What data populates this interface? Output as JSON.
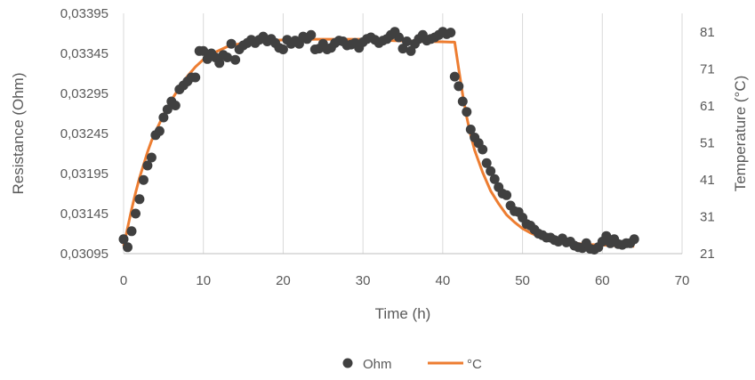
{
  "chart_data": {
    "type": "scatter",
    "xlabel": "Time (h)",
    "ylabel": "Resistance (Ohm)",
    "y2label": "Temperature (°C)",
    "xlim": [
      0,
      70
    ],
    "ylim": [
      0.03095,
      0.03395
    ],
    "y2lim": [
      21,
      86
    ],
    "x_ticks": [
      "0",
      "10",
      "20",
      "30",
      "40",
      "50",
      "60",
      "70"
    ],
    "y_ticks": [
      "0,03095",
      "0,03145",
      "0,03195",
      "0,03245",
      "0,03295",
      "0,03345",
      "0,03395"
    ],
    "y2_ticks": [
      "21",
      "31",
      "41",
      "51",
      "61",
      "71",
      "81"
    ],
    "grid": "vertical",
    "legend_position": "bottom",
    "colors": {
      "ohm": "#404040",
      "temp": "#ed7d31",
      "grid": "#d9d9d9"
    },
    "series": [
      {
        "name": "Ohm",
        "kind": "scatter",
        "axis": "left",
        "x": [
          0,
          0.5,
          1,
          1.5,
          2,
          2.5,
          3,
          3.5,
          4,
          4.5,
          5,
          5.5,
          6,
          6.5,
          7,
          7.5,
          8,
          8.5,
          9,
          9.5,
          10,
          10.5,
          11,
          11.5,
          12,
          12.5,
          13,
          13.5,
          14,
          14.5,
          15,
          15.5,
          16,
          16.5,
          17,
          17.5,
          18,
          18.5,
          19,
          19.5,
          20,
          20.5,
          21,
          21.5,
          22,
          22.5,
          23,
          23.5,
          24,
          24.5,
          25,
          25.5,
          26,
          26.5,
          27,
          27.5,
          28,
          28.5,
          29,
          29.5,
          30,
          30.5,
          31,
          31.5,
          32,
          32.5,
          33,
          33.5,
          34,
          34.5,
          35,
          35.5,
          36,
          36.5,
          37,
          37.5,
          38,
          38.5,
          39,
          39.5,
          40,
          40.5,
          41,
          41.5,
          42,
          42.5,
          43,
          43.5,
          44,
          44.5,
          45,
          45.5,
          46,
          46.5,
          47,
          47.5,
          48,
          48.5,
          49,
          49.5,
          50,
          50.5,
          51,
          51.5,
          52,
          52.5,
          53,
          53.5,
          54,
          54.5,
          55,
          55.5,
          56,
          56.5,
          57,
          57.5,
          58,
          58.5,
          59,
          59.5,
          60,
          60.5,
          61,
          61.5,
          62,
          62.5,
          63,
          63.5,
          64
        ],
        "values": [
          0.03113,
          0.03103,
          0.03123,
          0.03145,
          0.03163,
          0.03187,
          0.03205,
          0.03215,
          0.03243,
          0.03248,
          0.03265,
          0.03275,
          0.03285,
          0.0328,
          0.033,
          0.03305,
          0.0331,
          0.03315,
          0.03315,
          0.03348,
          0.03348,
          0.03338,
          0.03345,
          0.0334,
          0.03333,
          0.03343,
          0.0334,
          0.03357,
          0.03337,
          0.0335,
          0.03355,
          0.03358,
          0.03362,
          0.03358,
          0.03362,
          0.03366,
          0.0336,
          0.03363,
          0.03358,
          0.03352,
          0.0335,
          0.03362,
          0.03357,
          0.03361,
          0.03357,
          0.03366,
          0.03363,
          0.03368,
          0.0335,
          0.03351,
          0.03357,
          0.0335,
          0.03352,
          0.03358,
          0.03361,
          0.0336,
          0.03355,
          0.03356,
          0.03358,
          0.03352,
          0.03359,
          0.03363,
          0.03365,
          0.03362,
          0.03358,
          0.03361,
          0.03363,
          0.03368,
          0.03372,
          0.03365,
          0.03351,
          0.0336,
          0.03348,
          0.03357,
          0.03363,
          0.03368,
          0.03361,
          0.03363,
          0.03365,
          0.03368,
          0.03372,
          0.03369,
          0.03371,
          0.03316,
          0.03304,
          0.03285,
          0.03272,
          0.0325,
          0.0324,
          0.03233,
          0.03225,
          0.03208,
          0.03198,
          0.03188,
          0.03178,
          0.0317,
          0.03168,
          0.03155,
          0.03148,
          0.03147,
          0.0314,
          0.03132,
          0.0313,
          0.03125,
          0.0312,
          0.03118,
          0.03115,
          0.03115,
          0.03112,
          0.0311,
          0.03114,
          0.03109,
          0.0311,
          0.03105,
          0.03103,
          0.03102,
          0.03108,
          0.03101,
          0.031,
          0.03103,
          0.0311,
          0.03117,
          0.03108,
          0.03113,
          0.03107,
          0.03106,
          0.03108,
          0.03108,
          0.03113
        ]
      },
      {
        "name": "°C",
        "kind": "line",
        "axis": "right",
        "x": [
          0,
          0.5,
          1,
          1.5,
          2,
          2.5,
          3,
          3.5,
          4,
          5,
          6,
          7,
          8,
          9,
          10,
          11,
          12,
          13,
          14,
          15,
          16,
          18,
          20,
          22,
          24,
          26,
          28,
          30,
          32,
          34,
          36,
          38,
          40,
          41.5,
          42,
          42.5,
          43,
          43.5,
          44,
          45,
          46,
          47,
          48,
          49,
          50,
          51,
          52,
          53,
          54,
          55,
          56,
          57,
          58,
          59,
          60,
          61,
          62,
          63,
          64
        ],
        "values": [
          23,
          28,
          33,
          37.5,
          41.5,
          45,
          48.5,
          51.5,
          54,
          58.5,
          62.5,
          66,
          69,
          71.5,
          73.5,
          75,
          76,
          77,
          77.5,
          78,
          78.3,
          78.6,
          78.8,
          78.9,
          79,
          79,
          79,
          79,
          78.8,
          78.6,
          78.5,
          78.4,
          78.3,
          78.2,
          71,
          64,
          58,
          53,
          49,
          43,
          38,
          34.5,
          31.5,
          29.5,
          27.8,
          26.6,
          25.7,
          25,
          24.6,
          24.2,
          23.9,
          23.7,
          23.5,
          23.4,
          23.3,
          23.2,
          23.1,
          23.1,
          23
        ]
      }
    ]
  }
}
